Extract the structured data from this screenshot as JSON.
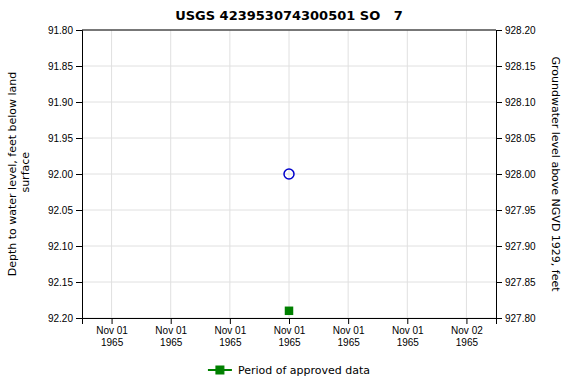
{
  "chart_data": {
    "type": "scatter",
    "title": "USGS 423953074300501 SO   7",
    "y_label": "Depth to water level, feet below land\n surface",
    "y2_label": "Groundwater level above NGVD 1929, feet",
    "categories": [
      "Nov 01\n1965",
      "Nov 01\n1965",
      "Nov 01\n1965",
      "Nov 01\n1965",
      "Nov 01\n1965",
      "Nov 01\n1965",
      "Nov 02\n1965"
    ],
    "series": [
      {
        "color": "#0000cc",
        "marker": "circle-open",
        "values": [
          null,
          null,
          null,
          92.0,
          null,
          null,
          null
        ]
      },
      {
        "name": "Period of approved data",
        "color": "#008000",
        "marker": "square",
        "values": [
          null,
          null,
          null,
          92.19,
          null,
          null,
          null
        ]
      }
    ],
    "ylim": [
      92.2,
      91.8
    ],
    "yticks": [
      {
        "value": 91.8,
        "label": "91.80"
      },
      {
        "value": 91.85,
        "label": "91.85"
      },
      {
        "value": 91.9,
        "label": "91.90"
      },
      {
        "value": 91.95,
        "label": "91.95"
      },
      {
        "value": 92.0,
        "label": "92.00"
      },
      {
        "value": 92.05,
        "label": "92.05"
      },
      {
        "value": 92.1,
        "label": "92.10"
      },
      {
        "value": 92.15,
        "label": "92.15"
      },
      {
        "value": 92.2,
        "label": "92.20"
      }
    ],
    "y2lim": [
      927.8,
      928.2
    ],
    "y2ticks": [
      {
        "value": 928.2,
        "label": "928.20"
      },
      {
        "value": 928.15,
        "label": "928.15"
      },
      {
        "value": 928.1,
        "label": "928.10"
      },
      {
        "value": 928.05,
        "label": "928.05"
      },
      {
        "value": 928.0,
        "label": "928.00"
      },
      {
        "value": 927.95,
        "label": "927.95"
      },
      {
        "value": 927.9,
        "label": "927.90"
      },
      {
        "value": 927.85,
        "label": "927.85"
      },
      {
        "value": 927.8,
        "label": "927.80"
      }
    ],
    "grid": true,
    "legend": "bottom"
  }
}
